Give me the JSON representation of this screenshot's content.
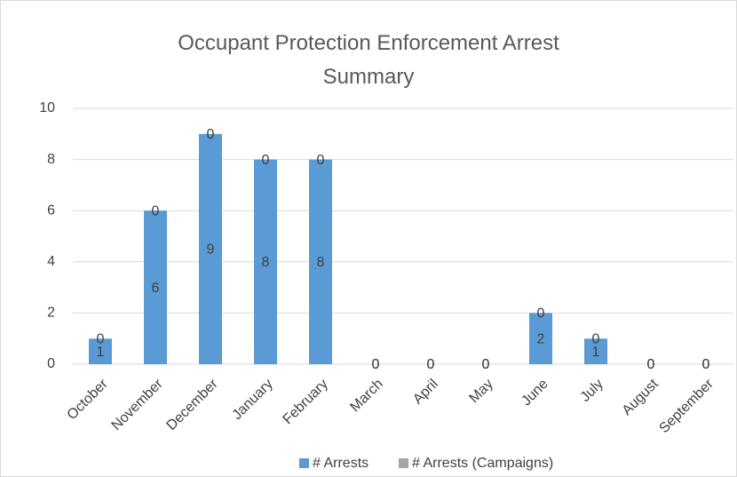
{
  "chart_data": {
    "type": "bar",
    "stacked": true,
    "title": "Occupant Protection Enforcement Arrest Summary",
    "categories": [
      "October",
      "November",
      "December",
      "January",
      "February",
      "March",
      "April",
      "May",
      "June",
      "July",
      "August",
      "September"
    ],
    "series": [
      {
        "name": "# Arrests",
        "color": "#5b9bd5",
        "values": [
          1,
          6,
          9,
          8,
          8,
          0,
          0,
          0,
          2,
          1,
          0,
          0
        ]
      },
      {
        "name": "# Arrests (Campaigns)",
        "color": "#a5a5a5",
        "values": [
          0,
          0,
          0,
          0,
          0,
          0,
          0,
          0,
          0,
          0,
          0,
          0
        ]
      }
    ],
    "ylim": [
      0,
      10
    ],
    "yticks": [
      0,
      2,
      4,
      6,
      8,
      10
    ],
    "grid": true,
    "legend": "bottom",
    "data_labels": true
  }
}
